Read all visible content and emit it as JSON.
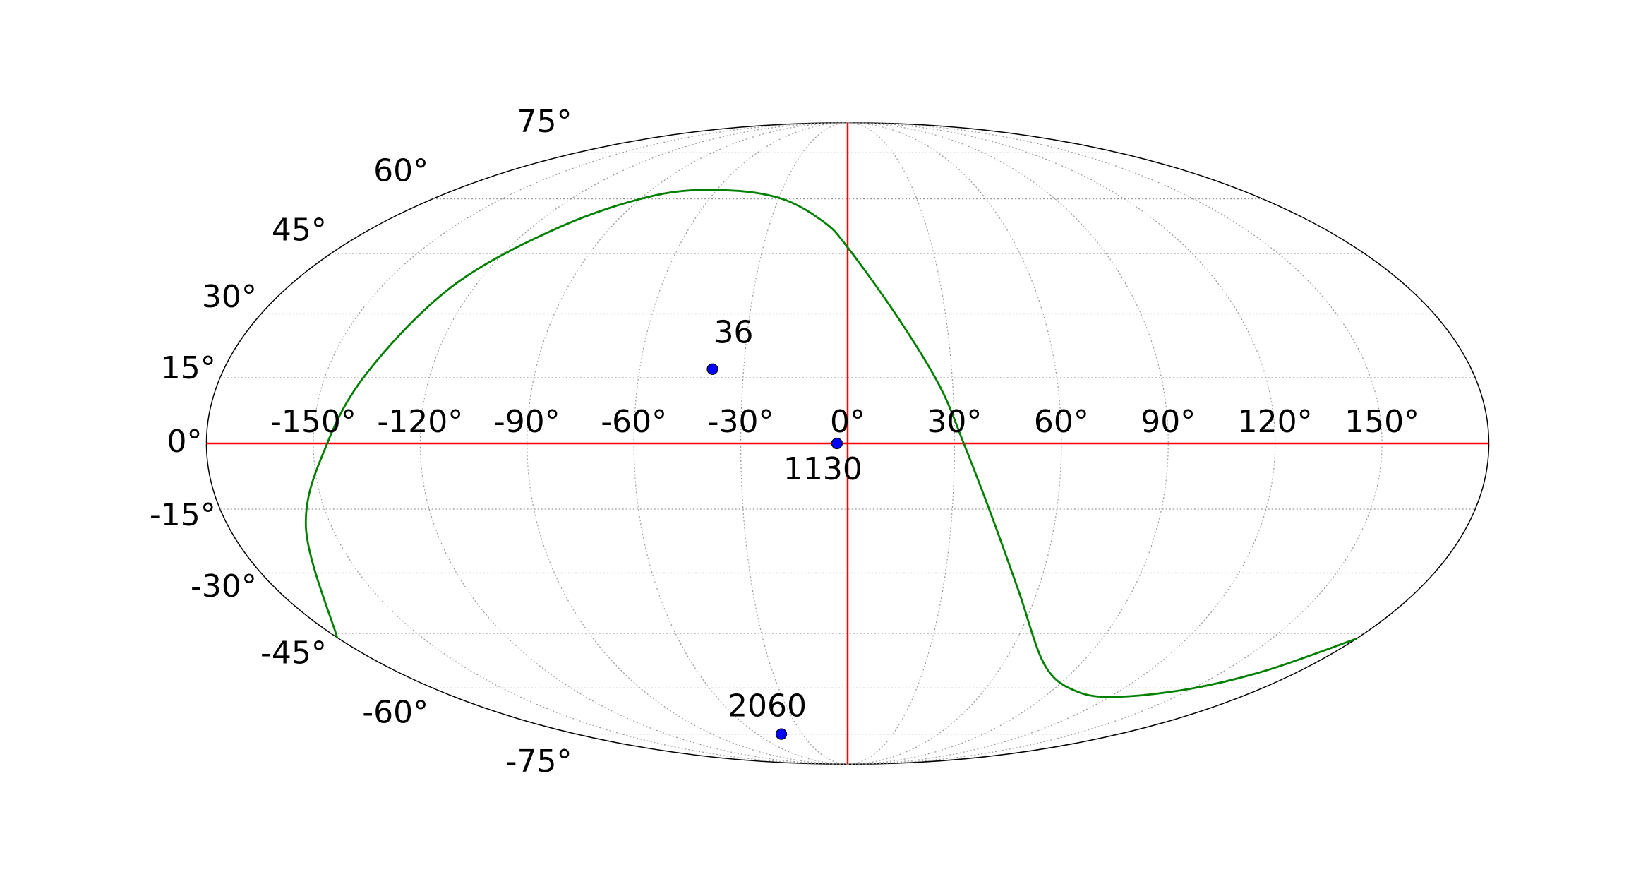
{
  "chart_data": {
    "type": "scatter",
    "projection": "mollweide",
    "xlim": [
      -180,
      180
    ],
    "ylim": [
      -90,
      90
    ],
    "xticks": [
      {
        "value": -150,
        "label": "-150°"
      },
      {
        "value": -120,
        "label": "-120°"
      },
      {
        "value": -90,
        "label": "-90°"
      },
      {
        "value": -60,
        "label": "-60°"
      },
      {
        "value": -30,
        "label": "-30°"
      },
      {
        "value": 0,
        "label": "0°"
      },
      {
        "value": 30,
        "label": "30°"
      },
      {
        "value": 60,
        "label": "60°"
      },
      {
        "value": 90,
        "label": "90°"
      },
      {
        "value": 120,
        "label": "120°"
      },
      {
        "value": 150,
        "label": "150°"
      }
    ],
    "yticks": [
      {
        "value": -75,
        "label": "-75°"
      },
      {
        "value": -60,
        "label": "-60°"
      },
      {
        "value": -45,
        "label": "-45°"
      },
      {
        "value": -30,
        "label": "-30°"
      },
      {
        "value": -15,
        "label": "-15°"
      },
      {
        "value": 0,
        "label": "0°"
      },
      {
        "value": 15,
        "label": "15°"
      },
      {
        "value": 30,
        "label": "30°"
      },
      {
        "value": 45,
        "label": "45°"
      },
      {
        "value": 60,
        "label": "60°"
      },
      {
        "value": 75,
        "label": "75°"
      }
    ],
    "grid": true,
    "reference_lines": {
      "x": 0,
      "y": 0,
      "color": "#ff0000"
    },
    "curve": {
      "color": "#008000",
      "x": [
        -180,
        -157.6,
        -146.1,
        -137.9,
        -127.1,
        -109.5,
        -85.5,
        -57.0,
        -28.9,
        -9.4,
        0,
        15.2,
        26.2,
        32.6,
        41.7,
        54.1,
        76.6,
        101.3,
        124.1,
        149.9,
        166.4,
        180
      ],
      "y": [
        -46.1,
        -19.3,
        0,
        16.9,
        37.0,
        52.0,
        61.0,
        62.6,
        60.1,
        53.5,
        46.6,
        29.3,
        13.2,
        0,
        -16.9,
        -34.4,
        -53.5,
        -61.0,
        -62.6,
        -60.1,
        -54.9,
        -46.4
      ]
    },
    "points": {
      "color": "#0000ff",
      "labels": [
        "36",
        "1130",
        "2060"
      ],
      "x": [
        -39,
        -3,
        -44
      ],
      "y": [
        17,
        0,
        -75
      ]
    }
  }
}
